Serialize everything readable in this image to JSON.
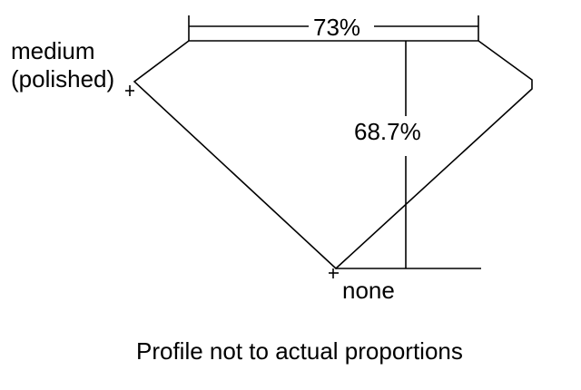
{
  "diagram": {
    "table_percent_label": "73%",
    "depth_percent_label": "68.7%",
    "girdle_label_line1": "medium",
    "girdle_label_line2": "(polished)",
    "culet_label": "none",
    "caption": "Profile not to actual proportions",
    "line_color": "#000000"
  }
}
